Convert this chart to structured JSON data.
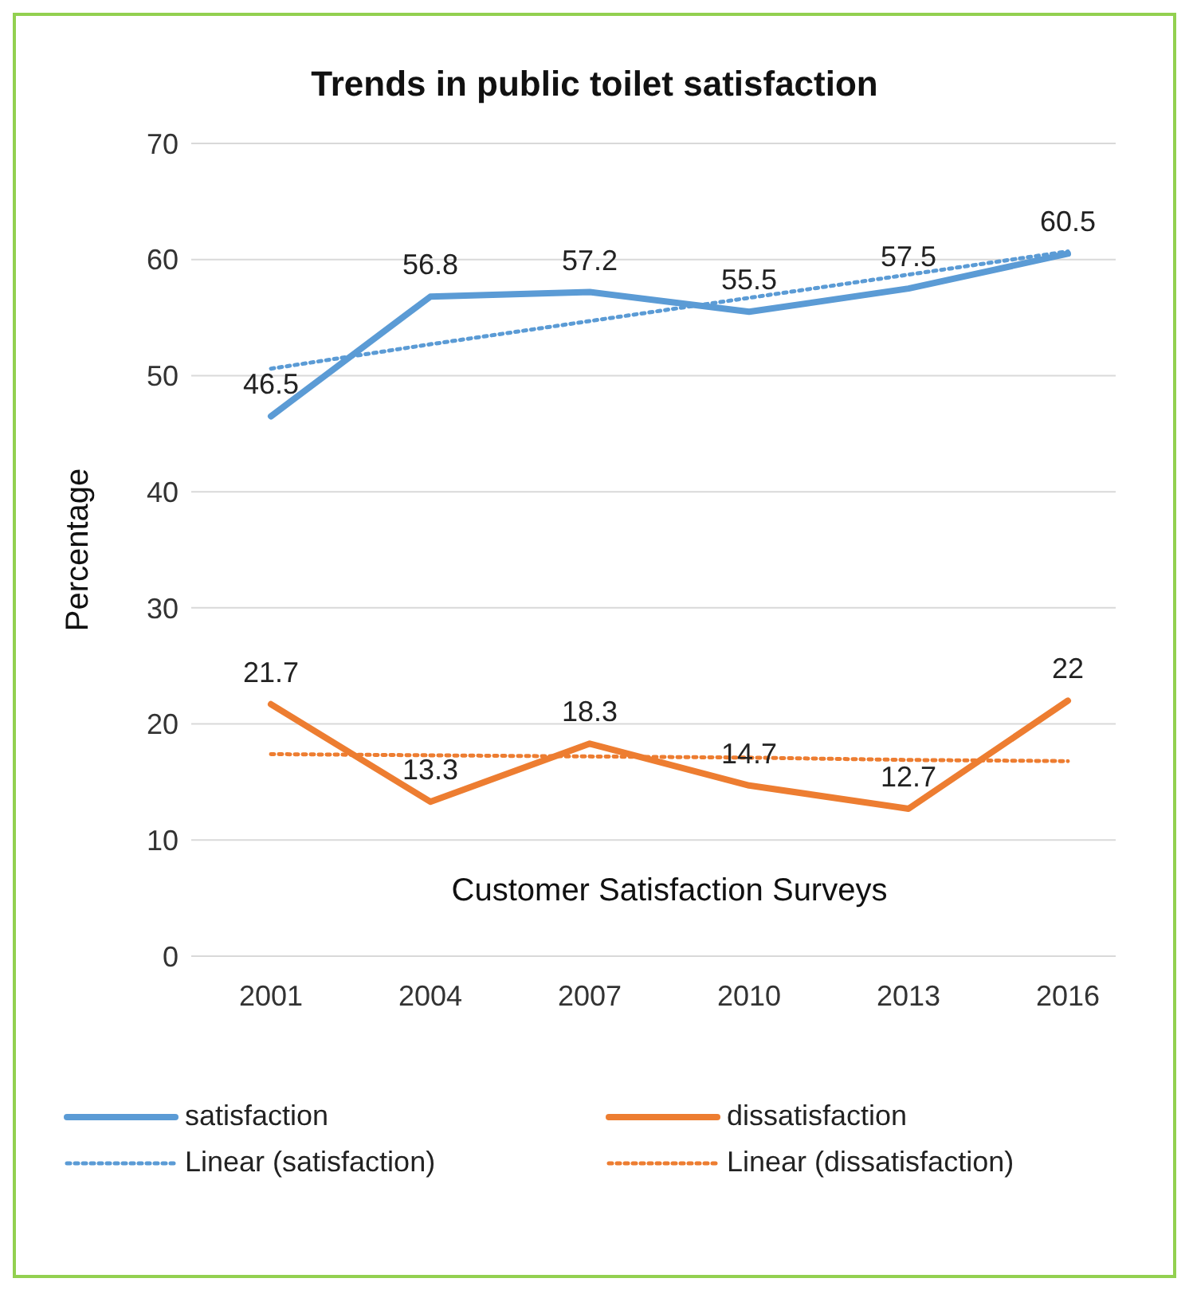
{
  "chart_data": {
    "type": "line",
    "title": "Trends in public toilet satisfaction",
    "xlabel": "Customer Satisfaction Surveys",
    "ylabel": "Percentage",
    "categories": [
      "2001",
      "2004",
      "2007",
      "2010",
      "2013",
      "2016"
    ],
    "series": [
      {
        "name": "satisfaction",
        "color": "#5b9bd5",
        "values": [
          46.5,
          56.8,
          57.2,
          55.5,
          57.5,
          60.5
        ],
        "line_style": "solid",
        "data_labels": true
      },
      {
        "name": "dissatisfaction",
        "color": "#ed7d31",
        "values": [
          21.7,
          13.3,
          18.3,
          14.7,
          12.7,
          22
        ],
        "line_style": "solid",
        "data_labels": true
      },
      {
        "name": "Linear (satisfaction)",
        "color": "#5b9bd5",
        "values": [
          50.6,
          52.7,
          54.7,
          56.7,
          58.7,
          60.7
        ],
        "line_style": "dotted"
      },
      {
        "name": "Linear (dissatisfaction)",
        "color": "#ed7d31",
        "values": [
          17.4,
          17.3,
          17.2,
          17.1,
          16.9,
          16.8
        ],
        "line_style": "dotted"
      }
    ],
    "ylim": [
      0,
      70
    ],
    "yticks": [
      0,
      10,
      20,
      30,
      40,
      50,
      60,
      70
    ],
    "grid": "y",
    "legend": "bottom",
    "marker": "none"
  }
}
